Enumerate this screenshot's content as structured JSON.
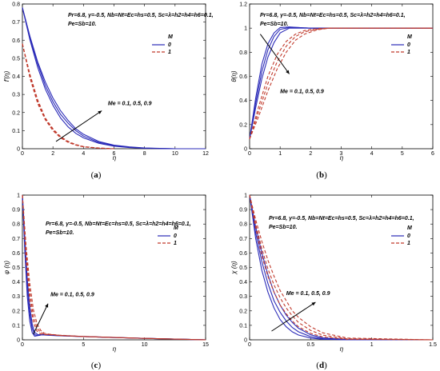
{
  "figure": {
    "params_text": "Pr=6.8, γ=-0.5, Nb=Nt=Ec=hs=0.5, Sc=λ=h2=h4=h6=0.1,",
    "params_text2": "Pe=Sb=10.",
    "legend_title": "M",
    "legend_entries": [
      "0",
      "1"
    ],
    "annotation": "Me = 0.1, 0.5, 0.9",
    "colors": {
      "m0": "#2b2bb8",
      "m1": "#c0392b"
    }
  },
  "chart_data": [
    {
      "id": "a",
      "caption_label": "a",
      "type": "line",
      "title": "",
      "xlabel": "η",
      "ylabel": "f'(η)",
      "xlim": [
        0,
        12
      ],
      "ylim": [
        0,
        0.8
      ],
      "xticks": [
        "0",
        "2",
        "4",
        "6",
        "8",
        "10",
        "12"
      ],
      "yticks": [
        "0",
        "0.1",
        "0.2",
        "0.3",
        "0.4",
        "0.5",
        "0.6",
        "0.7",
        "0.8"
      ],
      "series": [
        {
          "name": "0",
          "x": [
            0,
            0.5,
            1,
            1.5,
            2,
            2.5,
            3,
            3.5,
            4,
            5,
            6,
            7,
            8,
            10,
            12
          ],
          "y": [
            0.78,
            0.6,
            0.45,
            0.33,
            0.24,
            0.17,
            0.12,
            0.085,
            0.06,
            0.03,
            0.014,
            0.006,
            0.002,
            0,
            0
          ]
        },
        {
          "x": [
            0,
            0.5,
            1,
            1.5,
            2,
            2.5,
            3,
            3.5,
            4,
            5,
            6,
            7,
            8,
            10,
            12
          ],
          "y": [
            0.78,
            0.61,
            0.47,
            0.35,
            0.26,
            0.19,
            0.14,
            0.1,
            0.07,
            0.035,
            0.017,
            0.008,
            0.003,
            0,
            0
          ]
        },
        {
          "x": [
            0,
            0.5,
            1,
            1.5,
            2,
            2.5,
            3,
            3.5,
            4,
            5,
            6,
            7,
            8,
            10,
            12
          ],
          "y": [
            0.78,
            0.62,
            0.48,
            0.37,
            0.28,
            0.21,
            0.155,
            0.11,
            0.08,
            0.04,
            0.02,
            0.01,
            0.004,
            0,
            0
          ]
        },
        {
          "name": "1",
          "x": [
            0,
            0.5,
            1,
            1.5,
            2,
            2.5,
            3,
            3.5,
            4,
            5,
            6
          ],
          "y": [
            0.58,
            0.39,
            0.25,
            0.16,
            0.1,
            0.06,
            0.035,
            0.02,
            0.01,
            0.003,
            0
          ]
        },
        {
          "x": [
            0,
            0.5,
            1,
            1.5,
            2,
            2.5,
            3,
            3.5,
            4,
            5,
            6
          ],
          "y": [
            0.58,
            0.4,
            0.26,
            0.165,
            0.105,
            0.063,
            0.037,
            0.021,
            0.011,
            0.003,
            0
          ]
        },
        {
          "x": [
            0,
            0.5,
            1,
            1.5,
            2,
            2.5,
            3,
            3.5,
            4,
            5,
            6
          ],
          "y": [
            0.58,
            0.41,
            0.27,
            0.17,
            0.11,
            0.067,
            0.04,
            0.023,
            0.012,
            0.004,
            0
          ]
        }
      ],
      "arrow": {
        "from": [
          2.2,
          0.04
        ],
        "to": [
          5.2,
          0.21
        ]
      },
      "annotation_at": [
        5.6,
        0.24
      ]
    },
    {
      "id": "b",
      "caption_label": "b",
      "type": "line",
      "title": "",
      "xlabel": "η",
      "ylabel": "θ(η)",
      "xlim": [
        0,
        6
      ],
      "ylim": [
        0,
        1.2
      ],
      "xticks": [
        "0",
        "1",
        "2",
        "3",
        "4",
        "5",
        "6"
      ],
      "yticks": [
        "0",
        "0.2",
        "0.4",
        "0.6",
        "0.8",
        "1",
        "1.2"
      ],
      "series": [
        {
          "name": "0",
          "x": [
            0,
            0.2,
            0.4,
            0.6,
            0.8,
            1,
            1.3,
            1.6,
            2,
            2.5,
            3,
            4,
            6
          ],
          "y": [
            0.08,
            0.42,
            0.7,
            0.87,
            0.96,
            1.005,
            1.01,
            1.005,
            1.0,
            1.0,
            1.0,
            1.0,
            1.0
          ]
        },
        {
          "x": [
            0,
            0.2,
            0.4,
            0.6,
            0.8,
            1,
            1.3,
            1.6,
            2,
            2.5,
            3,
            4,
            6
          ],
          "y": [
            0.08,
            0.38,
            0.64,
            0.82,
            0.93,
            0.99,
            1.005,
            1.005,
            1.0,
            1.0,
            1.0,
            1.0,
            1.0
          ]
        },
        {
          "x": [
            0,
            0.2,
            0.4,
            0.6,
            0.8,
            1,
            1.3,
            1.6,
            2,
            2.5,
            3,
            4,
            6
          ],
          "y": [
            0.08,
            0.34,
            0.58,
            0.76,
            0.88,
            0.96,
            1.0,
            1.0,
            1.0,
            1.0,
            1.0,
            1.0,
            1.0
          ]
        },
        {
          "name": "1",
          "x": [
            0,
            0.3,
            0.6,
            0.9,
            1.2,
            1.5,
            1.8,
            2.2,
            2.6,
            3,
            4,
            6
          ],
          "y": [
            0.08,
            0.35,
            0.6,
            0.78,
            0.89,
            0.95,
            0.98,
            0.995,
            1.0,
            1.0,
            1.0,
            1.0
          ]
        },
        {
          "x": [
            0,
            0.3,
            0.6,
            0.9,
            1.2,
            1.5,
            1.8,
            2.2,
            2.6,
            3,
            4,
            6
          ],
          "y": [
            0.08,
            0.31,
            0.54,
            0.72,
            0.85,
            0.93,
            0.97,
            0.99,
            1.0,
            1.0,
            1.0,
            1.0
          ]
        },
        {
          "x": [
            0,
            0.3,
            0.6,
            0.9,
            1.2,
            1.5,
            1.8,
            2.2,
            2.6,
            3,
            4,
            6
          ],
          "y": [
            0.08,
            0.27,
            0.48,
            0.66,
            0.8,
            0.9,
            0.95,
            0.985,
            1.0,
            1.0,
            1.0,
            1.0
          ]
        }
      ],
      "arrow": {
        "from": [
          0.35,
          0.95
        ],
        "to": [
          1.3,
          0.62
        ]
      },
      "annotation_at": [
        1.0,
        0.46
      ]
    },
    {
      "id": "c",
      "caption_label": "c",
      "type": "line",
      "title": "",
      "xlabel": "η",
      "ylabel": "φ (η)",
      "xlim": [
        0,
        15
      ],
      "ylim": [
        0,
        1
      ],
      "xticks": [
        "0",
        "5",
        "10",
        "15"
      ],
      "yticks": [
        "0",
        "0.1",
        "0.2",
        "0.3",
        "0.4",
        "0.5",
        "0.6",
        "0.7",
        "0.8",
        "0.9",
        "1"
      ],
      "series": [
        {
          "name": "0",
          "x": [
            0,
            0.2,
            0.4,
            0.6,
            0.8,
            1,
            1.3,
            1.6,
            2,
            3,
            5,
            10,
            15
          ],
          "y": [
            1.0,
            0.6,
            0.3,
            0.13,
            0.05,
            0.025,
            0.03,
            0.035,
            0.032,
            0.028,
            0.022,
            0.01,
            0.0
          ]
        },
        {
          "x": [
            0,
            0.2,
            0.4,
            0.6,
            0.8,
            1,
            1.3,
            1.6,
            2,
            3,
            5,
            10,
            15
          ],
          "y": [
            1.0,
            0.65,
            0.36,
            0.18,
            0.08,
            0.035,
            0.03,
            0.035,
            0.034,
            0.029,
            0.022,
            0.01,
            0.0
          ]
        },
        {
          "x": [
            0,
            0.2,
            0.4,
            0.6,
            0.8,
            1,
            1.3,
            1.6,
            2,
            3,
            5,
            10,
            15
          ],
          "y": [
            1.0,
            0.7,
            0.42,
            0.23,
            0.11,
            0.05,
            0.035,
            0.037,
            0.036,
            0.03,
            0.023,
            0.01,
            0.0
          ]
        },
        {
          "name": "1",
          "x": [
            0,
            0.3,
            0.6,
            0.9,
            1.2,
            1.5,
            1.8,
            2.2,
            2.6,
            3,
            5,
            10,
            15
          ],
          "y": [
            1.0,
            0.55,
            0.27,
            0.12,
            0.06,
            0.04,
            0.036,
            0.035,
            0.033,
            0.03,
            0.022,
            0.01,
            0.0
          ]
        },
        {
          "x": [
            0,
            0.3,
            0.6,
            0.9,
            1.2,
            1.5,
            1.8,
            2.2,
            2.6,
            3,
            5,
            10,
            15
          ],
          "y": [
            1.0,
            0.6,
            0.33,
            0.16,
            0.08,
            0.05,
            0.04,
            0.037,
            0.035,
            0.031,
            0.023,
            0.01,
            0.0
          ]
        },
        {
          "x": [
            0,
            0.3,
            0.6,
            0.9,
            1.2,
            1.5,
            1.8,
            2.2,
            2.6,
            3,
            5,
            10,
            15
          ],
          "y": [
            1.0,
            0.65,
            0.39,
            0.21,
            0.11,
            0.065,
            0.045,
            0.039,
            0.036,
            0.032,
            0.023,
            0.01,
            0.0
          ]
        }
      ],
      "arrow": {
        "from": [
          0.9,
          0.04
        ],
        "to": [
          2.1,
          0.25
        ]
      },
      "annotation_at": [
        2.3,
        0.3
      ]
    },
    {
      "id": "d",
      "caption_label": "d",
      "type": "line",
      "title": "",
      "xlabel": "η",
      "ylabel": "χ (η)",
      "xlim": [
        0,
        1.5
      ],
      "ylim": [
        0,
        1
      ],
      "xticks": [
        "0",
        "0.5",
        "1",
        "1.5"
      ],
      "yticks": [
        "0",
        "0.1",
        "0.2",
        "0.3",
        "0.4",
        "0.5",
        "0.6",
        "0.7",
        "0.8",
        "0.9",
        "1"
      ],
      "series": [
        {
          "name": "0",
          "x": [
            0,
            0.05,
            0.1,
            0.15,
            0.2,
            0.25,
            0.3,
            0.35,
            0.4,
            0.5,
            0.6,
            0.8,
            1.5
          ],
          "y": [
            1.0,
            0.7,
            0.48,
            0.33,
            0.22,
            0.14,
            0.09,
            0.055,
            0.033,
            0.012,
            0.004,
            0,
            0
          ]
        },
        {
          "x": [
            0,
            0.05,
            0.1,
            0.15,
            0.2,
            0.25,
            0.3,
            0.35,
            0.4,
            0.5,
            0.6,
            0.8,
            1.5
          ],
          "y": [
            1.0,
            0.74,
            0.54,
            0.39,
            0.27,
            0.19,
            0.13,
            0.085,
            0.055,
            0.022,
            0.008,
            0,
            0
          ]
        },
        {
          "x": [
            0,
            0.05,
            0.1,
            0.15,
            0.2,
            0.25,
            0.3,
            0.35,
            0.4,
            0.5,
            0.6,
            0.8,
            1.5
          ],
          "y": [
            1.0,
            0.78,
            0.6,
            0.45,
            0.33,
            0.24,
            0.17,
            0.12,
            0.08,
            0.035,
            0.014,
            0.002,
            0
          ]
        },
        {
          "name": "1",
          "x": [
            0,
            0.05,
            0.1,
            0.15,
            0.2,
            0.25,
            0.3,
            0.35,
            0.4,
            0.5,
            0.6,
            0.8,
            1.5
          ],
          "y": [
            1.0,
            0.77,
            0.58,
            0.44,
            0.33,
            0.24,
            0.18,
            0.13,
            0.09,
            0.045,
            0.02,
            0.004,
            0
          ]
        },
        {
          "x": [
            0,
            0.05,
            0.1,
            0.15,
            0.2,
            0.25,
            0.3,
            0.35,
            0.4,
            0.5,
            0.6,
            0.8,
            1.5
          ],
          "y": [
            1.0,
            0.8,
            0.63,
            0.49,
            0.38,
            0.29,
            0.22,
            0.165,
            0.12,
            0.065,
            0.032,
            0.007,
            0
          ]
        },
        {
          "x": [
            0,
            0.05,
            0.1,
            0.15,
            0.2,
            0.25,
            0.3,
            0.35,
            0.4,
            0.5,
            0.6,
            0.8,
            1.5
          ],
          "y": [
            1.0,
            0.83,
            0.68,
            0.55,
            0.44,
            0.34,
            0.27,
            0.2,
            0.155,
            0.09,
            0.048,
            0.012,
            0
          ]
        }
      ],
      "arrow": {
        "from": [
          0.18,
          0.06
        ],
        "to": [
          0.54,
          0.26
        ]
      },
      "annotation_at": [
        0.3,
        0.31
      ]
    }
  ]
}
